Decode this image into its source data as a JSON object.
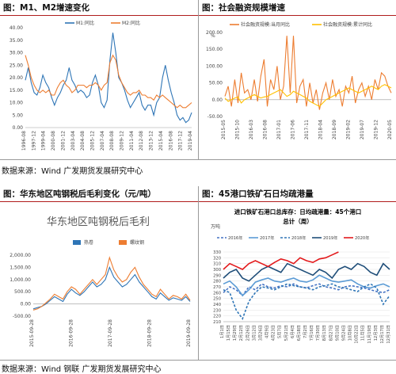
{
  "panels": {
    "p1": {
      "title": "图：M1、M2增速变化"
    },
    "p2": {
      "title": "图：社会融资规模增速"
    },
    "p3": {
      "title": "图：华东地区吨钢税后毛利变化（元/吨）"
    },
    "p4": {
      "title": "图：45港口铁矿石日均疏港量"
    }
  },
  "sources": {
    "top": "数据来源：Wind  广发期货发展研究中心",
    "bottom": "数据来源：Wind  钢联  广发期货发展研究中心"
  },
  "colors": {
    "blue": "#2e75b6",
    "orange": "#ed7d31",
    "yellow": "#ffc000",
    "red": "#e31a1c",
    "navy": "#1f4e79",
    "title_red": "#b01c1c"
  },
  "chart_data": [
    {
      "type": "line",
      "title": "",
      "ylim": [
        0,
        40
      ],
      "yticks": [
        "0.00",
        "5.00",
        "10.00",
        "15.00",
        "20.00",
        "25.00",
        "30.00",
        "35.00",
        "40.00"
      ],
      "xticks": [
        "1996-08",
        "1997-12",
        "1999-04",
        "2000-08",
        "2001-12",
        "2003-04",
        "2004-08",
        "2005-12",
        "2007-04",
        "2008-08",
        "2009-12",
        "2011-04",
        "2012-08",
        "2013-12",
        "2015-04",
        "2016-08",
        "2017-12",
        "2019-04"
      ],
      "series": [
        {
          "name": "M1:同比",
          "color": "#2e75b6",
          "values": [
            19,
            24,
            18,
            14,
            13,
            16,
            21,
            18,
            16,
            12,
            9,
            12,
            14,
            17,
            19,
            24,
            19,
            17,
            14,
            15,
            14,
            12,
            13,
            18,
            21,
            17,
            10,
            8,
            11,
            27,
            38,
            30,
            20,
            18,
            15,
            11,
            8,
            10,
            12,
            14,
            9,
            7,
            9,
            9,
            5,
            10,
            12,
            20,
            25,
            19,
            14,
            10,
            5,
            3,
            4,
            2,
            3,
            6
          ]
        },
        {
          "name": "M2:同比",
          "color": "#ed7d31",
          "values": [
            29,
            25,
            20,
            17,
            15,
            14,
            15,
            14,
            15,
            13,
            13,
            16,
            18,
            19,
            17,
            16,
            14,
            15,
            17,
            17,
            17,
            16,
            17,
            17,
            18,
            17,
            15,
            17,
            18,
            26,
            29,
            27,
            21,
            18,
            16,
            14,
            13,
            14,
            14,
            15,
            13,
            13,
            12,
            12,
            11,
            13,
            12,
            13,
            12,
            11,
            10,
            9,
            8,
            9,
            8,
            8,
            9,
            10
          ]
        }
      ]
    },
    {
      "type": "line",
      "title": "",
      "ylabel": "%",
      "ylim": [
        -50,
        200
      ],
      "yticks": [
        "-50.00",
        "0.00",
        "50.00",
        "100.00",
        "150.00",
        "200.00"
      ],
      "xticks": [
        "2015-05",
        "2015-10",
        "2016-03",
        "2016-08",
        "2017-01",
        "2017-06",
        "2017-11",
        "2018-04",
        "2018-09",
        "2019-02",
        "2019-07",
        "2019-12",
        "2020-05"
      ],
      "series": [
        {
          "name": "社会融资规模:当月同比",
          "color": "#ed7d31",
          "values": [
            10,
            40,
            -20,
            60,
            -10,
            80,
            20,
            30,
            0,
            60,
            -5,
            70,
            120,
            -20,
            60,
            30,
            100,
            0,
            40,
            190,
            20,
            190,
            -10,
            40,
            60,
            -20,
            50,
            -10,
            30,
            -30,
            20,
            50,
            0,
            60,
            10,
            30,
            -20,
            40,
            20,
            70,
            -10,
            30,
            50,
            10,
            40,
            0,
            60,
            30,
            80,
            70,
            40,
            20
          ]
        },
        {
          "name": "社会融资规模:累计同比",
          "color": "#ffc000",
          "values": [
            5,
            -5,
            0,
            5,
            8,
            -10,
            0,
            5,
            10,
            15,
            10,
            5,
            8,
            10,
            15,
            20,
            25,
            30,
            20,
            10,
            15,
            25,
            20,
            15,
            10,
            5,
            -5,
            -10,
            -15,
            -20,
            -10,
            0,
            5,
            10,
            15,
            20,
            25,
            30,
            35,
            30,
            25,
            20,
            25,
            30,
            35,
            40,
            35,
            30,
            40,
            45,
            40,
            35
          ]
        }
      ]
    },
    {
      "type": "line",
      "title": "华东地区吨钢税后毛利",
      "ylim": [
        -500,
        2000
      ],
      "yticks": [
        "-500.00",
        "0.00",
        "500.00",
        "1,000.00",
        "1,500.00",
        "2,000.00"
      ],
      "xticks": [
        "2015-09-28",
        "2016-09-28",
        "2017-09-28",
        "2018-09-28",
        "2019-09-28"
      ],
      "series": [
        {
          "name": "热卷",
          "color": "#2e75b6",
          "values": [
            -200,
            -150,
            -100,
            0,
            150,
            300,
            200,
            100,
            400,
            600,
            450,
            350,
            500,
            700,
            900,
            700,
            800,
            1000,
            1500,
            1100,
            900,
            700,
            800,
            1000,
            1200,
            900,
            700,
            500,
            300,
            200,
            450,
            300,
            150,
            250,
            200,
            150,
            300,
            100
          ]
        },
        {
          "name": "螺纹钢",
          "color": "#ed7d31",
          "values": [
            -250,
            -200,
            -100,
            50,
            200,
            400,
            300,
            200,
            500,
            700,
            600,
            400,
            600,
            800,
            1000,
            800,
            1000,
            1200,
            1900,
            1400,
            1100,
            900,
            1000,
            1300,
            1500,
            1100,
            800,
            600,
            400,
            300,
            600,
            400,
            200,
            350,
            300,
            200,
            400,
            150
          ]
        }
      ]
    },
    {
      "type": "line",
      "title": "进口铁矿石港口总库存：日均疏港量：45个港口总计（周）",
      "ylabel": "万吨",
      "ylim": [
        210,
        330
      ],
      "yticks": [
        "210",
        "220",
        "230",
        "240",
        "250",
        "260",
        "270",
        "280",
        "290",
        "300",
        "310",
        "320",
        "330"
      ],
      "xticks": [
        "1月1日",
        "1月15日",
        "1月29日",
        "2月12日",
        "2月26日",
        "3月12日",
        "3月26日",
        "4月9日",
        "4月23日",
        "5月7日",
        "5月21日",
        "6月4日",
        "6月18日",
        "7月2日",
        "7月16日",
        "7月30日",
        "8月13日",
        "8月27日",
        "9月10日",
        "9月24日",
        "10月8日",
        "10月22日",
        "11月5日",
        "11月19日",
        "12月3日",
        "12月17日",
        "12月31日"
      ],
      "series": [
        {
          "name": "2016年",
          "color": "#4472c4",
          "values": [
            260,
            270,
            265,
            255,
            270,
            265,
            275,
            270,
            268,
            272,
            270,
            275,
            270,
            268,
            272,
            275,
            270,
            268,
            265,
            270,
            272,
            270,
            268,
            265,
            262,
            260,
            265
          ]
        },
        {
          "name": "2017年",
          "color": "#5b9bd5",
          "values": [
            275,
            280,
            270,
            255,
            265,
            278,
            282,
            285,
            280,
            278,
            282,
            285,
            280,
            278,
            282,
            290,
            285,
            280,
            278,
            280,
            282,
            275,
            270,
            268,
            272,
            275,
            270
          ]
        },
        {
          "name": "2018年",
          "color": "#2e75b6",
          "values": [
            265,
            260,
            230,
            215,
            245,
            260,
            270,
            268,
            265,
            270,
            275,
            272,
            270,
            268,
            265,
            270,
            272,
            275,
            270,
            268,
            265,
            262,
            270,
            275,
            268,
            240,
            255
          ]
        },
        {
          "name": "2019年",
          "color": "#1f4e79",
          "values": [
            285,
            295,
            300,
            285,
            280,
            290,
            300,
            305,
            300,
            295,
            310,
            305,
            300,
            295,
            290,
            300,
            295,
            285,
            300,
            305,
            300,
            310,
            305,
            295,
            290,
            310,
            300
          ]
        },
        {
          "name": "2020年",
          "color": "#e31a1c",
          "values": [
            300,
            310,
            305,
            300,
            310,
            315,
            310,
            305,
            312,
            318,
            315,
            310,
            320,
            315,
            312,
            318,
            320,
            325,
            330
          ]
        }
      ]
    }
  ]
}
